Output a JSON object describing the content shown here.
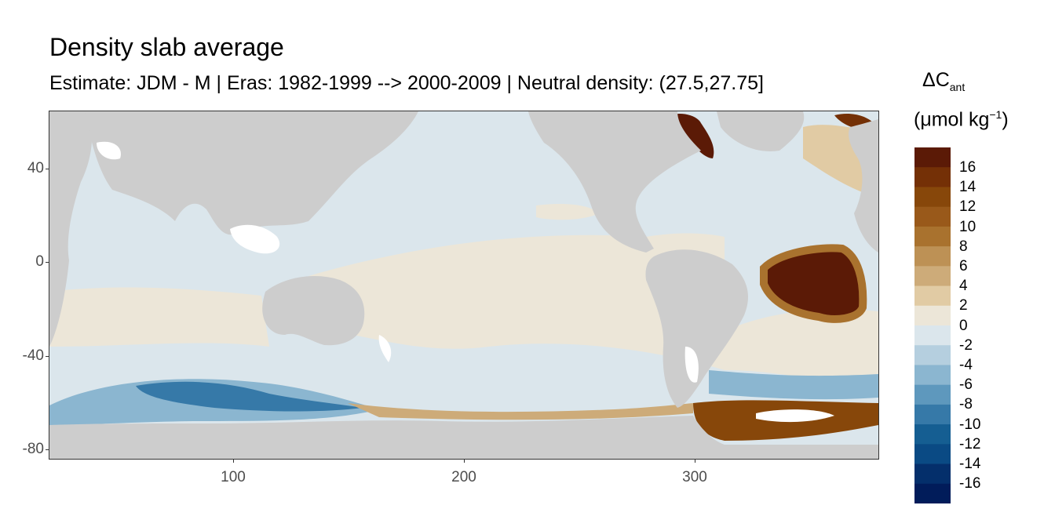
{
  "title": "Density slab average",
  "subtitle": "Estimate: JDM - M | Eras: 1982-1999 --> 2000-2009 | Neutral density: (27.5,27.75]",
  "legend": {
    "title_symbol": "ΔC",
    "title_subscript": "ant",
    "unit_prefix": "(μmol kg",
    "unit_superscript": "−1",
    "unit_suffix": ")",
    "labels": [
      "16",
      "14",
      "12",
      "10",
      "8",
      "6",
      "4",
      "2",
      "0",
      "-2",
      "-4",
      "-6",
      "-8",
      "-10",
      "-12",
      "-14",
      "-16"
    ],
    "colors": [
      "#5b1a06",
      "#743006",
      "#87470a",
      "#99591a",
      "#a9722e",
      "#bd9155",
      "#cdab79",
      "#e1cba4",
      "#ece6d8",
      "#dbe6ec",
      "#b5cfdf",
      "#8bb6d0",
      "#5e98bd",
      "#3679a8",
      "#155e92",
      "#0a4a84",
      "#042f6b",
      "#011c5a"
    ]
  },
  "chart_data": {
    "type": "heatmap",
    "title": "Density slab average",
    "subtitle": "Estimate: JDM - M | Eras: 1982-1999 --> 2000-2009 | Neutral density: (27.5,27.75]",
    "xlabel": "",
    "ylabel": "",
    "xlim": [
      20,
      380
    ],
    "ylim": [
      -85,
      65
    ],
    "x_ticks": [
      "100",
      "200",
      "300"
    ],
    "y_ticks": [
      "40",
      "0",
      "-40",
      "-80"
    ],
    "colorbar_range": [
      -18,
      18
    ],
    "colorbar_labels": [
      "16",
      "14",
      "12",
      "10",
      "8",
      "6",
      "4",
      "2",
      "0",
      "-2",
      "-4",
      "-6",
      "-8",
      "-10",
      "-12",
      "-14",
      "-16"
    ],
    "grid": false
  }
}
